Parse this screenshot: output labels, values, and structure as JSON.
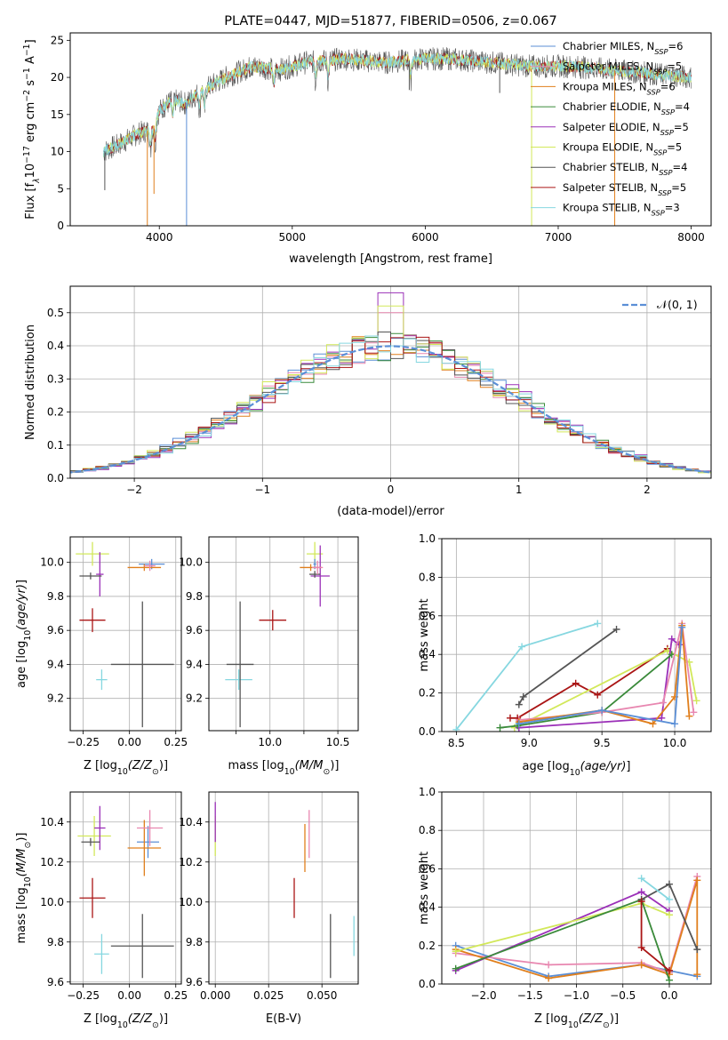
{
  "colors": {
    "Chabrier MILES": "#5b8fd6",
    "Salpeter MILES": "#e887b0",
    "Kroupa MILES": "#e07f1c",
    "Chabrier ELODIE": "#3a8a3a",
    "Salpeter ELODIE": "#9b30b8",
    "Kroupa ELODIE": "#d2e85a",
    "Chabrier STELIB": "#555555",
    "Salpeter STELIB": "#aa1515",
    "Kroupa STELIB": "#86d7e0",
    "dashed_gauss": "#5b8fd6",
    "grid": "#b0b0b0"
  },
  "chart_data": [
    {
      "id": "spectrum",
      "type": "line",
      "title": "PLATE=0447, MJD=51877, FIBERID=0506, z=0.067",
      "xlabel": "wavelength [Angstrom, rest frame]",
      "ylabel": "Flux [f",
      "ylabel_sub": "λ",
      "ylabel_tail": "10",
      "ylabel_sup1": "−17",
      "ylabel_tail2": " erg cm",
      "ylabel_sup2": "−2",
      "ylabel_tail3": " s",
      "ylabel_sup3": "−1",
      "ylabel_tail4": " A",
      "ylabel_sup4": "−1",
      "ylabel_end": "]",
      "xlim": [
        3330,
        8150
      ],
      "ylim": [
        0,
        26
      ],
      "xticks": [
        4000,
        5000,
        6000,
        7000,
        8000
      ],
      "yticks": [
        0,
        5,
        10,
        15,
        20,
        25
      ],
      "grid": false,
      "legend_position": "top-right",
      "continuum": [
        [
          3580,
          10
        ],
        [
          3700,
          11
        ],
        [
          3850,
          12.5
        ],
        [
          3950,
          13
        ],
        [
          4000,
          15.5
        ],
        [
          4100,
          17
        ],
        [
          4200,
          16.5
        ],
        [
          4300,
          18
        ],
        [
          4500,
          20
        ],
        [
          4700,
          21.5
        ],
        [
          4900,
          21
        ],
        [
          5100,
          22
        ],
        [
          5400,
          22.5
        ],
        [
          5700,
          22
        ],
        [
          6000,
          22.5
        ],
        [
          6200,
          22.5
        ],
        [
          6500,
          22
        ],
        [
          6800,
          21.5
        ],
        [
          7100,
          21.5
        ],
        [
          7400,
          21
        ],
        [
          7700,
          20.5
        ],
        [
          8000,
          20
        ]
      ],
      "models": [
        {
          "name": "Chabrier MILES",
          "nssp": "6"
        },
        {
          "name": "Salpeter MILES",
          "nssp": "5"
        },
        {
          "name": "Kroupa MILES",
          "nssp": "6"
        },
        {
          "name": "Chabrier ELODIE",
          "nssp": "4"
        },
        {
          "name": "Salpeter ELODIE",
          "nssp": "5"
        },
        {
          "name": "Kroupa ELODIE",
          "nssp": "5"
        },
        {
          "name": "Chabrier STELIB",
          "nssp": "4"
        },
        {
          "name": "Salpeter STELIB",
          "nssp": "5"
        },
        {
          "name": "Kroupa STELIB",
          "nssp": "3"
        }
      ],
      "drops": [
        {
          "x": 3910,
          "y": 0,
          "model": "Kroupa MILES"
        },
        {
          "x": 4205,
          "y": 0,
          "model": "Chabrier MILES"
        },
        {
          "x": 6800,
          "y": 0,
          "model": "Kroupa ELODIE"
        },
        {
          "x": 7425,
          "y": 0,
          "model": "Kroupa MILES"
        },
        {
          "x": 3590,
          "y": 4.8,
          "model": "Chabrier STELIB"
        },
        {
          "x": 3960,
          "y": 4.3,
          "model": "Kroupa MILES"
        },
        {
          "x": 5880,
          "y": 18.3,
          "model": "Chabrier STELIB"
        },
        {
          "x": 6560,
          "y": 17.9,
          "model": "Chabrier STELIB"
        }
      ]
    },
    {
      "id": "residuals",
      "type": "line",
      "xlabel": "(data-model)/error",
      "ylabel": "Normed distribution",
      "xlim": [
        -2.5,
        2.5
      ],
      "ylim": [
        0,
        0.58
      ],
      "xticks": [
        -2,
        -1,
        0,
        1,
        2
      ],
      "yticks": [
        0.0,
        0.1,
        0.2,
        0.3,
        0.4,
        0.5
      ],
      "grid": true,
      "legend_position": "top-right",
      "legend_label": "𝒩(0, 1)",
      "bin_width": 0.1,
      "peak_bumps": {
        "Salpeter ELODIE": 0.56,
        "Kroupa ELODIE": 0.52,
        "Salpeter MILES": 0.5
      }
    },
    {
      "id": "age-vs-Z",
      "type": "scatter",
      "xlabel": "Z [log",
      "xlabel_sub": "10",
      "xlabel_rest": "(Z/Z",
      "xlabel_sub2": "⊙",
      "xlabel_end": ")]",
      "ylabel": "age  [log",
      "ylabel_sub": "10",
      "ylabel_rest": "(age/yr)]",
      "xlim": [
        -0.32,
        0.28
      ],
      "ylim": [
        9.01,
        10.15
      ],
      "xticks": [
        -0.25,
        0.0,
        0.25
      ],
      "xtick_labels": [
        "−0.25",
        "0.00",
        "0.25"
      ],
      "yticks": [
        9.2,
        9.4,
        9.6,
        9.8,
        10.0
      ],
      "grid": true,
      "points": [
        {
          "model": "Kroupa ELODIE",
          "x": -0.2,
          "xerr": 0.09,
          "y": 10.05,
          "yerr": 0.07
        },
        {
          "model": "Salpeter ELODIE",
          "x": -0.16,
          "xerr": 0.02,
          "y": 9.93,
          "yerr": 0.13
        },
        {
          "model": "Chabrier STELIB",
          "x": -0.21,
          "xerr": 0.06,
          "y": 9.92,
          "yerr": 0.02
        },
        {
          "model": "Chabrier MILES",
          "x": 0.12,
          "xerr": 0.07,
          "y": 9.99,
          "yerr": 0.03
        },
        {
          "model": "Kroupa MILES",
          "x": 0.08,
          "xerr": 0.09,
          "y": 9.97,
          "yerr": 0.02
        },
        {
          "model": "Salpeter MILES",
          "x": 0.11,
          "xerr": 0.03,
          "y": 9.98,
          "yerr": 0.03
        },
        {
          "model": "Salpeter STELIB",
          "x": -0.2,
          "xerr": 0.07,
          "y": 9.66,
          "yerr": 0.07
        },
        {
          "model": "Kroupa STELIB",
          "x": -0.15,
          "xerr": 0.03,
          "y": 9.31,
          "yerr": 0.06
        },
        {
          "model": "Chabrier STELIB",
          "x": 0.07,
          "xerr": 0.17,
          "y": 9.4,
          "yerr": 0.37
        }
      ]
    },
    {
      "id": "age-vs-mass",
      "type": "scatter",
      "xlabel": "mass [log",
      "xlabel_sub": "10",
      "xlabel_rest": "(M/M",
      "xlabel_sub2": "⊙",
      "xlabel_end": ")]",
      "xlim": [
        9.55,
        10.65
      ],
      "ylim": [
        9.01,
        10.15
      ],
      "xticks": [
        9.75,
        10.0,
        10.25,
        10.5
      ],
      "xtick_labels": [
        "",
        "10.0",
        "",
        "10.5"
      ],
      "yticks": [
        9.2,
        9.4,
        9.6,
        9.8,
        10.0
      ],
      "grid": true,
      "points": [
        {
          "model": "Kroupa ELODIE",
          "x": 10.33,
          "xerr": 0.06,
          "y": 10.05,
          "yerr": 0.07
        },
        {
          "model": "Salpeter ELODIE",
          "x": 10.37,
          "xerr": 0.07,
          "y": 9.92,
          "yerr": 0.18
        },
        {
          "model": "Chabrier STELIB",
          "x": 10.33,
          "xerr": 0.04,
          "y": 9.93,
          "yerr": 0.02
        },
        {
          "model": "Chabrier MILES",
          "x": 10.33,
          "xerr": 0.01,
          "y": 9.99,
          "yerr": 0.03
        },
        {
          "model": "Kroupa MILES",
          "x": 10.3,
          "xerr": 0.08,
          "y": 9.97,
          "yerr": 0.02
        },
        {
          "model": "Salpeter MILES",
          "x": 10.35,
          "xerr": 0.04,
          "y": 9.97,
          "yerr": 0.04
        },
        {
          "model": "Salpeter STELIB",
          "x": 10.02,
          "xerr": 0.1,
          "y": 9.66,
          "yerr": 0.06
        },
        {
          "model": "Kroupa STELIB",
          "x": 9.77,
          "xerr": 0.1,
          "y": 9.31,
          "yerr": 0.06
        },
        {
          "model": "Chabrier STELIB",
          "x": 9.78,
          "xerr": 0.1,
          "y": 9.4,
          "yerr": 0.37
        }
      ]
    },
    {
      "id": "weight-vs-age",
      "type": "line",
      "xlabel": "age  [log",
      "xlabel_sub": "10",
      "xlabel_rest": "(age/yr)]",
      "ylabel": "mass weight",
      "xlim": [
        8.4,
        10.25
      ],
      "ylim": [
        0,
        1
      ],
      "xticks": [
        8.5,
        9.0,
        9.5,
        10.0
      ],
      "yticks": [
        0.0,
        0.2,
        0.4,
        0.6,
        0.8,
        1.0
      ],
      "grid": true,
      "series": [
        {
          "model": "Kroupa STELIB",
          "x": [
            8.5,
            8.95,
            9.47
          ],
          "y": [
            0.01,
            0.44,
            0.56
          ]
        },
        {
          "model": "Chabrier STELIB",
          "x": [
            8.93,
            8.96,
            9.6
          ],
          "y": [
            0.14,
            0.18,
            0.53
          ]
        },
        {
          "model": "Salpeter STELIB",
          "x": [
            8.87,
            8.92,
            9.32,
            9.47,
            9.95
          ],
          "y": [
            0.07,
            0.07,
            0.25,
            0.19,
            0.43
          ]
        },
        {
          "model": "Kroupa ELODIE",
          "x": [
            8.9,
            9.95,
            10.1,
            10.15
          ],
          "y": [
            0.02,
            0.42,
            0.36,
            0.16
          ]
        },
        {
          "model": "Salpeter ELODIE",
          "x": [
            8.93,
            9.91,
            9.98,
            10.03
          ],
          "y": [
            0.02,
            0.07,
            0.48,
            0.45
          ]
        },
        {
          "model": "Chabrier ELODIE",
          "x": [
            8.8,
            8.92,
            9.5,
            9.98
          ],
          "y": [
            0.02,
            0.03,
            0.1,
            0.4
          ]
        },
        {
          "model": "Salpeter MILES",
          "x": [
            8.93,
            9.5,
            9.92,
            10.05,
            10.13
          ],
          "y": [
            0.06,
            0.1,
            0.15,
            0.56,
            0.1
          ]
        },
        {
          "model": "Kroupa MILES",
          "x": [
            8.93,
            9.5,
            9.85,
            10.0,
            10.05,
            10.1
          ],
          "y": [
            0.05,
            0.11,
            0.04,
            0.18,
            0.55,
            0.08
          ]
        },
        {
          "model": "Chabrier MILES",
          "x": [
            8.93,
            9.5,
            10.0,
            10.05
          ],
          "y": [
            0.04,
            0.11,
            0.04,
            0.54
          ]
        }
      ]
    },
    {
      "id": "mass-vs-Z",
      "type": "scatter",
      "ylabel": "mass [log",
      "ylabel_sub": "10",
      "ylabel_rest": "(M/M",
      "ylabel_sub2": "⊙",
      "ylabel_end": ")]",
      "xlabel": "Z [log",
      "xlabel_sub": "10",
      "xlabel_rest": "(Z/Z",
      "xlabel_sub2": "⊙",
      "xlabel_end": ")]",
      "xlim": [
        -0.32,
        0.28
      ],
      "ylim": [
        9.59,
        10.55
      ],
      "xticks": [
        -0.25,
        0.0,
        0.25
      ],
      "xtick_labels": [
        "−0.25",
        "0.00",
        "0.25"
      ],
      "yticks": [
        9.6,
        9.8,
        10.0,
        10.2,
        10.4
      ],
      "grid": true,
      "points": [
        {
          "model": "Kroupa ELODIE",
          "x": -0.19,
          "xerr": 0.09,
          "y": 10.33,
          "yerr": 0.1
        },
        {
          "model": "Salpeter ELODIE",
          "x": -0.16,
          "xerr": 0.03,
          "y": 10.37,
          "yerr": 0.11
        },
        {
          "model": "Chabrier STELIB",
          "x": -0.21,
          "xerr": 0.05,
          "y": 10.3,
          "yerr": 0.02
        },
        {
          "model": "Chabrier MILES",
          "x": 0.1,
          "xerr": 0.06,
          "y": 10.3,
          "yerr": 0.08
        },
        {
          "model": "Kroupa MILES",
          "x": 0.08,
          "xerr": 0.09,
          "y": 10.27,
          "yerr": 0.14
        },
        {
          "model": "Salpeter MILES",
          "x": 0.11,
          "xerr": 0.07,
          "y": 10.37,
          "yerr": 0.09
        },
        {
          "model": "Salpeter STELIB",
          "x": -0.2,
          "xerr": 0.07,
          "y": 10.02,
          "yerr": 0.1
        },
        {
          "model": "Kroupa STELIB",
          "x": -0.15,
          "xerr": 0.04,
          "y": 9.74,
          "yerr": 0.1
        },
        {
          "model": "Chabrier STELIB",
          "x": 0.07,
          "xerr": 0.17,
          "y": 9.78,
          "yerr": 0.16
        }
      ]
    },
    {
      "id": "mass-vs-ebv",
      "type": "scatter",
      "xlabel": "E(B-V)",
      "xlim": [
        -0.003,
        0.067
      ],
      "ylim": [
        9.59,
        10.55
      ],
      "xticks": [
        0.0,
        0.025,
        0.05
      ],
      "xtick_labels": [
        "0.000",
        "0.025",
        "0.050"
      ],
      "yticks": [
        9.6,
        9.8,
        10.0,
        10.2,
        10.4
      ],
      "grid": true,
      "points": [
        {
          "model": "Kroupa ELODIE",
          "x": 0.0,
          "xerr": 0.0,
          "y": 10.33,
          "yerr": 0.1
        },
        {
          "model": "Salpeter ELODIE",
          "x": 0.0,
          "xerr": 0.0,
          "y": 10.4,
          "yerr": 0.1
        },
        {
          "model": "Salpeter MILES",
          "x": 0.044,
          "xerr": 0.0,
          "y": 10.34,
          "yerr": 0.12
        },
        {
          "model": "Kroupa MILES",
          "x": 0.042,
          "xerr": 0.0,
          "y": 10.27,
          "yerr": 0.12
        },
        {
          "model": "Salpeter STELIB",
          "x": 0.037,
          "xerr": 0.0,
          "y": 10.02,
          "yerr": 0.1
        },
        {
          "model": "Chabrier STELIB",
          "x": 0.054,
          "xerr": 0.0,
          "y": 9.78,
          "yerr": 0.16
        },
        {
          "model": "Kroupa STELIB",
          "x": 0.065,
          "xerr": 0.0,
          "y": 9.83,
          "yerr": 0.1
        }
      ]
    },
    {
      "id": "weight-vs-Z",
      "type": "line",
      "xlabel": "Z [log",
      "xlabel_sub": "10",
      "xlabel_rest": "(Z/Z",
      "xlabel_sub2": "⊙",
      "xlabel_end": ")]",
      "ylabel": "mass weight",
      "xlim": [
        -2.45,
        0.45
      ],
      "ylim": [
        0,
        1
      ],
      "xticks": [
        -2.0,
        -1.5,
        -1.0,
        -0.5,
        0.0
      ],
      "xtick_labels": [
        "−2.0",
        "−1.5",
        "−1.0",
        "−0.5",
        "0.0"
      ],
      "yticks": [
        0.0,
        0.2,
        0.4,
        0.6,
        0.8,
        1.0
      ],
      "grid": true,
      "series": [
        {
          "model": "Chabrier MILES",
          "x": [
            -2.3,
            -1.3,
            -0.3,
            0.3
          ],
          "y": [
            0.2,
            0.04,
            0.1,
            0.04
          ]
        },
        {
          "model": "Salpeter MILES",
          "x": [
            -2.3,
            -1.3,
            -0.3,
            0.0,
            0.3
          ],
          "y": [
            0.16,
            0.1,
            0.11,
            0.06,
            0.56
          ]
        },
        {
          "model": "Kroupa MILES",
          "x": [
            -2.3,
            -1.3,
            -0.3,
            0.0,
            0.3,
            0.3
          ],
          "y": [
            0.18,
            0.03,
            0.1,
            0.05,
            0.54,
            0.05
          ]
        },
        {
          "model": "Salpeter ELODIE",
          "x": [
            -2.3,
            -0.3,
            0.0
          ],
          "y": [
            0.07,
            0.48,
            0.38
          ]
        },
        {
          "model": "Kroupa ELODIE",
          "x": [
            -2.3,
            -0.3,
            0.0
          ],
          "y": [
            0.17,
            0.42,
            0.36
          ]
        },
        {
          "model": "Chabrier ELODIE",
          "x": [
            -2.3,
            -0.3,
            0.0
          ],
          "y": [
            0.08,
            0.44,
            0.02
          ]
        },
        {
          "model": "Chabrier STELIB",
          "x": [
            -0.3,
            0.0,
            0.3
          ],
          "y": [
            0.44,
            0.52,
            0.18
          ]
        },
        {
          "model": "Salpeter STELIB",
          "x": [
            -0.3,
            -0.3,
            0.0
          ],
          "y": [
            0.43,
            0.19,
            0.07
          ]
        },
        {
          "model": "Kroupa STELIB",
          "x": [
            -0.3,
            0.0
          ],
          "y": [
            0.55,
            0.44
          ]
        }
      ]
    }
  ]
}
